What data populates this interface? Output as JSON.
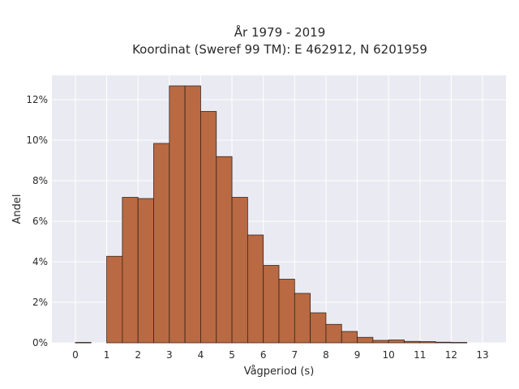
{
  "chart_data": {
    "type": "bar",
    "title": "År 1979 - 2019",
    "subtitle": "Koordinat (Sweref 99 TM): E 462912, N 6201959",
    "xlabel": "Vågperiod (s)",
    "ylabel": "Andel",
    "xlim": [
      -0.75,
      13.75
    ],
    "ylim": [
      0,
      13.2
    ],
    "x_ticks": [
      0,
      1,
      2,
      3,
      4,
      5,
      6,
      7,
      8,
      9,
      10,
      11,
      12,
      13
    ],
    "x_tick_labels": [
      "0",
      "1",
      "2",
      "3",
      "4",
      "5",
      "6",
      "7",
      "8",
      "9",
      "10",
      "11",
      "12",
      "13"
    ],
    "y_ticks": [
      0,
      2,
      4,
      6,
      8,
      10,
      12
    ],
    "y_tick_labels": [
      "0%",
      "2%",
      "4%",
      "6%",
      "8%",
      "10%",
      "12%"
    ],
    "grid": true,
    "bar_color": "#b96a43",
    "edge_color": "#3a2418",
    "background": "#eaeaf2",
    "bins": [
      {
        "start": 0.0,
        "end": 0.5,
        "value": 0.02
      },
      {
        "start": 1.0,
        "end": 1.5,
        "value": 4.27
      },
      {
        "start": 1.5,
        "end": 2.0,
        "value": 7.18
      },
      {
        "start": 2.0,
        "end": 2.5,
        "value": 7.12
      },
      {
        "start": 2.5,
        "end": 3.0,
        "value": 9.84
      },
      {
        "start": 3.0,
        "end": 3.5,
        "value": 12.68
      },
      {
        "start": 3.5,
        "end": 4.0,
        "value": 12.68
      },
      {
        "start": 4.0,
        "end": 4.5,
        "value": 11.42
      },
      {
        "start": 4.5,
        "end": 5.0,
        "value": 9.19
      },
      {
        "start": 5.0,
        "end": 5.5,
        "value": 7.18
      },
      {
        "start": 5.5,
        "end": 6.0,
        "value": 5.32
      },
      {
        "start": 6.0,
        "end": 6.5,
        "value": 3.82
      },
      {
        "start": 6.5,
        "end": 7.0,
        "value": 3.14
      },
      {
        "start": 7.0,
        "end": 7.5,
        "value": 2.44
      },
      {
        "start": 7.5,
        "end": 8.0,
        "value": 1.48
      },
      {
        "start": 8.0,
        "end": 8.5,
        "value": 0.91
      },
      {
        "start": 8.5,
        "end": 9.0,
        "value": 0.56
      },
      {
        "start": 9.0,
        "end": 9.5,
        "value": 0.27
      },
      {
        "start": 9.5,
        "end": 10.0,
        "value": 0.12
      },
      {
        "start": 10.0,
        "end": 10.5,
        "value": 0.14
      },
      {
        "start": 10.5,
        "end": 11.0,
        "value": 0.07
      },
      {
        "start": 11.0,
        "end": 11.5,
        "value": 0.06
      },
      {
        "start": 11.5,
        "end": 12.0,
        "value": 0.03
      },
      {
        "start": 12.0,
        "end": 12.5,
        "value": 0.02
      }
    ]
  }
}
